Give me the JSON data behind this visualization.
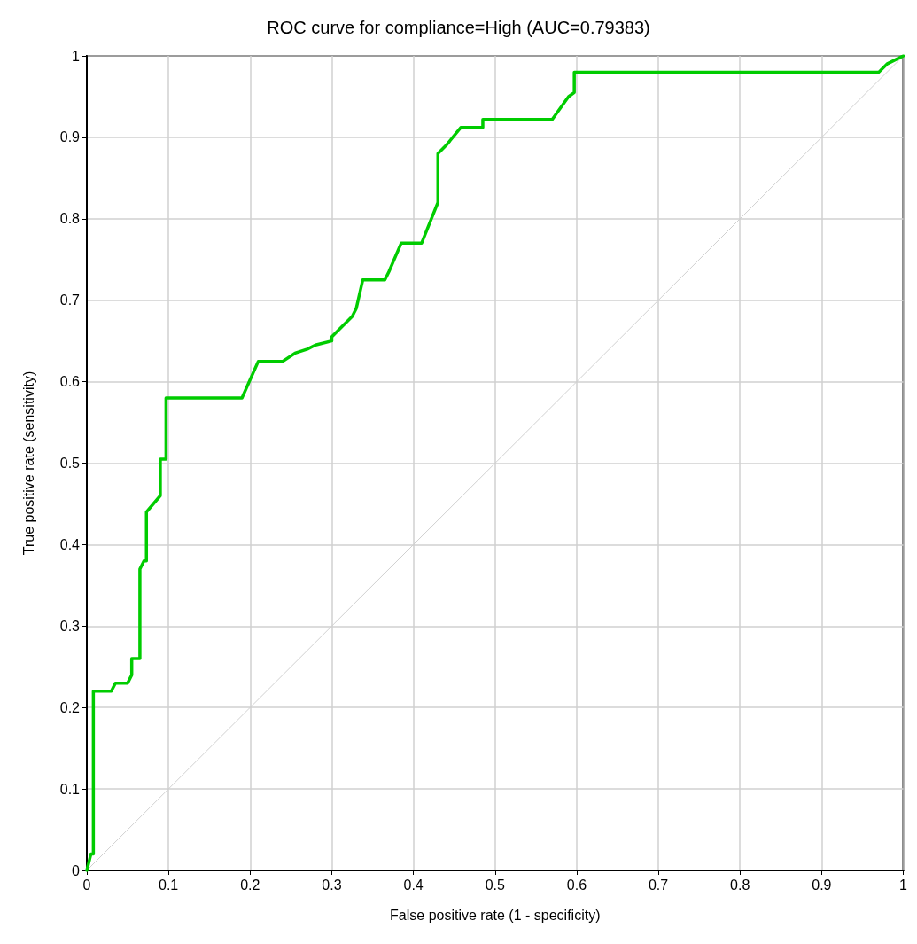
{
  "chart_data": {
    "type": "line",
    "title": "ROC curve for compliance=High (AUC=0.79383)",
    "xlabel": "False positive rate (1 - specificity)",
    "ylabel": "True positive rate (sensitivity)",
    "xlim": [
      0,
      1
    ],
    "ylim": [
      0,
      1
    ],
    "xticks": [
      0,
      0.1,
      0.2,
      0.3,
      0.4,
      0.5,
      0.6,
      0.7,
      0.8,
      0.9,
      1
    ],
    "yticks": [
      0,
      0.1,
      0.2,
      0.3,
      0.4,
      0.5,
      0.6,
      0.7,
      0.8,
      0.9,
      1
    ],
    "grid": true,
    "marker": "none",
    "line_style": "solid",
    "series": [
      {
        "color": "#d0d0d0",
        "x": [
          0,
          1
        ],
        "values": [
          0,
          1
        ]
      },
      {
        "color": "#00cc00",
        "x": [
          0,
          0.005,
          0.008,
          0.008,
          0.03,
          0.035,
          0.05,
          0.055,
          0.055,
          0.065,
          0.065,
          0.07,
          0.073,
          0.073,
          0.09,
          0.09,
          0.097,
          0.097,
          0.19,
          0.21,
          0.24,
          0.255,
          0.27,
          0.28,
          0.3,
          0.3,
          0.325,
          0.33,
          0.338,
          0.365,
          0.37,
          0.385,
          0.41,
          0.43,
          0.43,
          0.44,
          0.458,
          0.485,
          0.485,
          0.57,
          0.59,
          0.597,
          0.597,
          0.97,
          0.98,
          1
        ],
        "values": [
          0,
          0.02,
          0.02,
          0.22,
          0.22,
          0.23,
          0.23,
          0.24,
          0.26,
          0.26,
          0.37,
          0.38,
          0.38,
          0.44,
          0.46,
          0.505,
          0.505,
          0.58,
          0.58,
          0.625,
          0.625,
          0.635,
          0.64,
          0.645,
          0.65,
          0.655,
          0.68,
          0.69,
          0.725,
          0.725,
          0.735,
          0.77,
          0.77,
          0.82,
          0.88,
          0.89,
          0.912,
          0.912,
          0.922,
          0.922,
          0.95,
          0.955,
          0.98,
          0.98,
          0.99,
          1
        ]
      }
    ]
  }
}
